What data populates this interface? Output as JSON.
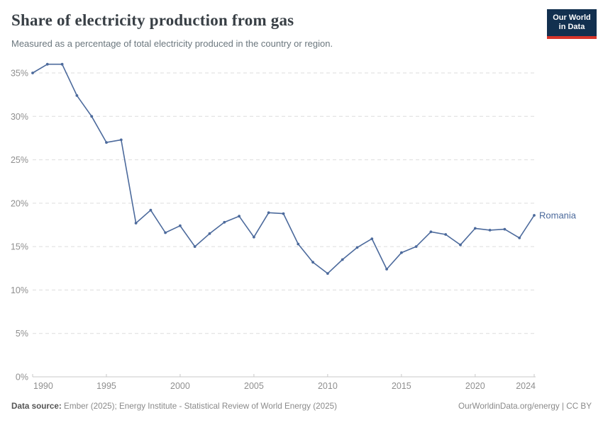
{
  "header": {
    "title": "Share of electricity production from gas",
    "subtitle": "Measured as a percentage of total electricity produced in the country or region.",
    "logo": {
      "line1": "Our World",
      "line2": "in Data"
    }
  },
  "chart_data": {
    "type": "line",
    "title": "Share of electricity production from gas",
    "xlabel": "",
    "ylabel": "",
    "ylim": [
      0,
      36
    ],
    "yticks": [
      0,
      5,
      10,
      15,
      20,
      25,
      30,
      35
    ],
    "ytick_suffix": "%",
    "xticks": [
      1990,
      1995,
      2000,
      2005,
      2010,
      2015,
      2020,
      2024
    ],
    "grid": "horizontal-dashed",
    "legend_position": "end-of-line-label",
    "colors": {
      "line": "#4c6a9c",
      "label": "#4c6a9c",
      "gridline": "#dddddd",
      "axis": "#c8c8c8",
      "tick_text": "#8f8f8f"
    },
    "series": [
      {
        "name": "Romania",
        "x": [
          1990,
          1991,
          1992,
          1993,
          1994,
          1995,
          1996,
          1997,
          1998,
          1999,
          2000,
          2001,
          2002,
          2003,
          2004,
          2005,
          2006,
          2007,
          2008,
          2009,
          2010,
          2011,
          2012,
          2013,
          2014,
          2015,
          2016,
          2017,
          2018,
          2019,
          2020,
          2021,
          2022,
          2023,
          2024
        ],
        "values": [
          35.0,
          36.0,
          36.0,
          32.4,
          30.0,
          27.0,
          27.3,
          17.7,
          19.2,
          16.6,
          17.4,
          15.0,
          16.5,
          17.8,
          18.5,
          16.1,
          18.9,
          18.8,
          15.3,
          13.2,
          11.9,
          13.5,
          14.9,
          15.9,
          12.4,
          14.3,
          15.0,
          16.7,
          16.4,
          15.2,
          17.1,
          16.9,
          17.0,
          16.0,
          18.6
        ]
      }
    ]
  },
  "footer": {
    "data_source_label": "Data source:",
    "data_source_text": " Ember (2025); Energy Institute - Statistical Review of World Energy (2025)",
    "right_text": "OurWorldinData.org/energy | CC BY"
  }
}
